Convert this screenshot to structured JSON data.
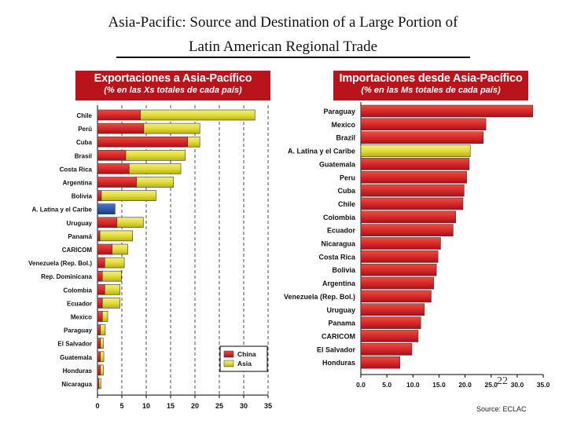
{
  "title": {
    "line1": "Asia-Pacific: Source and Destination of a Large Portion of",
    "line2": "Latin American Regional Trade"
  },
  "colors": {
    "china": "#d62a2a",
    "asia": "#e2dd3a",
    "header_bg": "#b9141c",
    "latam_blue": "#2451a8"
  },
  "chart_data": [
    {
      "type": "bar",
      "orientation": "horizontal",
      "stacked": true,
      "title": "Exportaciones a Asia-Pacífico",
      "subtitle": "(% en las Xs totales de cada país)",
      "categories": [
        "Chile",
        "Perú",
        "Cuba",
        "Brasil",
        "Costa Rica",
        "Argentina",
        "Bolivia",
        "A. Latina y el Caribe",
        "Uruguay",
        "Panamá",
        "CARICOM",
        "Venezuela (Rep. Bol.)",
        "Rep. Dominicana",
        "Colombia",
        "Ecuador",
        "Mexico",
        "Paraguay",
        "El Salvador",
        "Guatemala",
        "Honduras",
        "Nicaragua"
      ],
      "series": [
        {
          "name": "China",
          "values": [
            8.8,
            9.5,
            18.5,
            5.8,
            6.5,
            8.0,
            0.8,
            3.6,
            4.0,
            0.5,
            3.0,
            1.5,
            1.0,
            1.5,
            1.0,
            1.0,
            0.6,
            0.6,
            0.6,
            0.6,
            0.3
          ]
        },
        {
          "name": "Asia",
          "values": [
            23.5,
            11.5,
            2.5,
            12.2,
            10.6,
            7.6,
            11.2,
            0,
            5.4,
            6.7,
            3.2,
            4.0,
            3.9,
            3.1,
            3.6,
            1.1,
            1.0,
            0.6,
            0.7,
            0.6,
            0.4
          ]
        }
      ],
      "xlim": [
        0,
        35
      ],
      "xticks": [
        "0",
        "5",
        "10",
        "15",
        "20",
        "25",
        "30",
        "35"
      ],
      "legend": [
        "China",
        "Asia"
      ],
      "legend_position": "bottom-right"
    },
    {
      "type": "bar",
      "orientation": "horizontal",
      "title": "Importaciones desde Asia-Pacífico",
      "subtitle": "(% en las Ms totales de cada país)",
      "categories": [
        "Paraguay",
        "Mexico",
        "Brazil",
        "A. Latina y el Caribe",
        "Guatemala",
        "Peru",
        "Cuba",
        "Chile",
        "Colombia",
        "Ecuador",
        "Nicaragua",
        "Costa Rica",
        "Bolivia",
        "Argentina",
        "Venezuela (Rep. Bol.)",
        "Uruguay",
        "Panama",
        "CARICOM",
        "El Salvador",
        "Honduras"
      ],
      "values": [
        33.0,
        24.0,
        23.5,
        21.0,
        20.8,
        20.3,
        19.8,
        19.6,
        18.2,
        17.7,
        15.3,
        14.8,
        14.5,
        14.0,
        13.5,
        12.2,
        11.5,
        11.0,
        9.8,
        7.5
      ],
      "highlight": "A. Latina y el Caribe",
      "xlim": [
        0,
        35
      ],
      "xticks": [
        "0.0",
        "5.0",
        "10.0",
        "15.0",
        "20.0",
        "25.0",
        "30.0",
        "35.0"
      ]
    }
  ],
  "page_number": "22",
  "source": "Source: ECLAC"
}
